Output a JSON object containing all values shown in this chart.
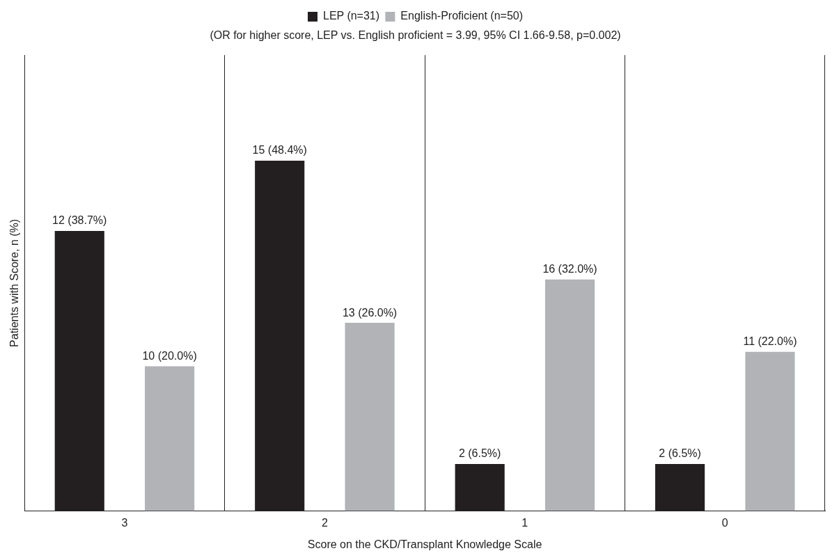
{
  "chart_data": {
    "type": "bar",
    "subtitle": "(OR for higher score, LEP vs. English proficient = 3.99, 95% CI 1.66-9.58, p=0.002)",
    "xlabel": "Score on the CKD/Transplant Knowledge Scale",
    "ylabel": "Patients with Score, n (%)",
    "categories": [
      "3",
      "2",
      "1",
      "0"
    ],
    "series": [
      {
        "name": "LEP (n=31)",
        "color": "#231f20",
        "values": [
          38.7,
          48.4,
          6.5,
          6.5
        ],
        "value_labels": [
          "12 (38.7%)",
          "15 (48.4%)",
          "2 (6.5%)",
          "2 (6.5%)"
        ]
      },
      {
        "name": "English-Proficient (n=50)",
        "color": "#b1b3b6",
        "values": [
          20.0,
          26.0,
          32.0,
          22.0
        ],
        "value_labels": [
          "10 (20.0%)",
          "13 (26.0%)",
          "16 (32.0%)",
          "11 (22.0%)"
        ]
      }
    ],
    "ylim": [
      0,
      63
    ],
    "tick_labels": "x",
    "grid": "x",
    "legend": "top"
  }
}
